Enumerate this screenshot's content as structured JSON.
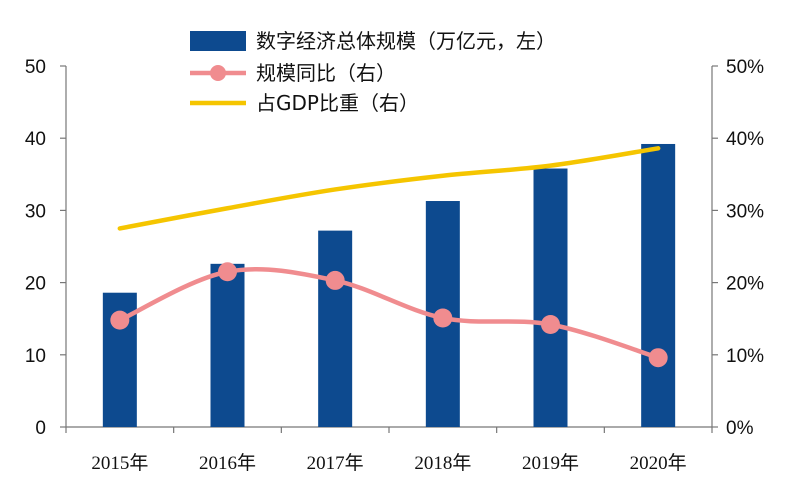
{
  "chart_data": {
    "type": "bar",
    "categories": [
      "2015年",
      "2016年",
      "2017年",
      "2018年",
      "2019年",
      "2020年"
    ],
    "series": [
      {
        "name": "数字经济总体规模（万亿元，左）",
        "type": "bar",
        "axis": "left",
        "color": "#0d4a8f",
        "values": [
          18.6,
          22.6,
          27.2,
          31.3,
          35.8,
          39.2
        ]
      },
      {
        "name": "规模同比（右）",
        "type": "line-marker",
        "axis": "right",
        "color": "#f08c8f",
        "values": [
          14.8,
          21.5,
          20.3,
          15.1,
          14.2,
          9.6
        ]
      },
      {
        "name": "占GDP比重（右）",
        "type": "line",
        "axis": "right",
        "color": "#f5c500",
        "values": [
          27.5,
          30.3,
          32.9,
          34.8,
          36.2,
          38.6
        ]
      }
    ],
    "y_left": {
      "range": [
        0,
        50
      ],
      "ticks": [
        "0",
        "10",
        "20",
        "30",
        "40",
        "50"
      ]
    },
    "y_right": {
      "range": [
        0,
        50
      ],
      "ticks": [
        "0%",
        "10%",
        "20%",
        "30%",
        "40%",
        "50%"
      ]
    },
    "legend_position": "top-center",
    "grid": false
  }
}
